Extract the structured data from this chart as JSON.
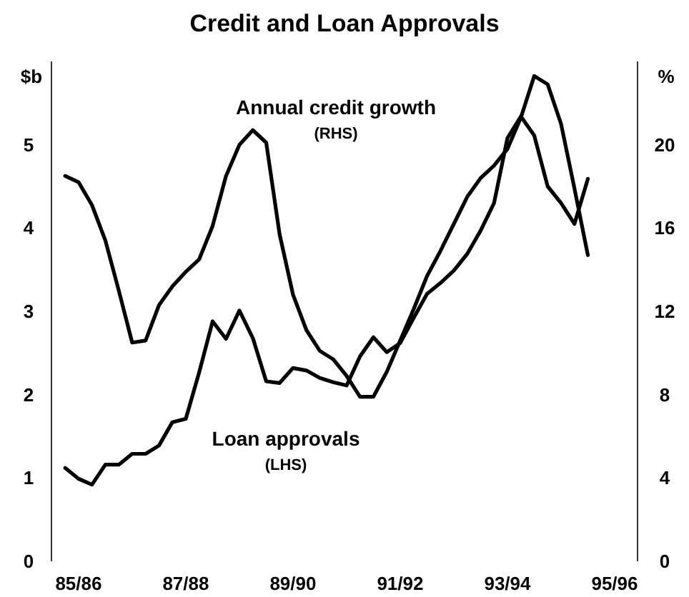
{
  "chart_data": {
    "type": "line",
    "title": "Credit and Loan Approvals",
    "ylabel": "$b",
    "y2label": "%",
    "categories": [
      null,
      "85/86",
      null,
      null,
      null,
      null,
      null,
      null,
      null,
      "87/88",
      null,
      null,
      null,
      null,
      null,
      null,
      null,
      "89/90",
      null,
      null,
      null,
      null,
      null,
      null,
      null,
      "91/92",
      null,
      null,
      null,
      null,
      null,
      null,
      null,
      "93/94",
      null,
      null,
      null,
      null,
      null,
      null,
      null,
      "95/96"
    ],
    "ylim": [
      0,
      6
    ],
    "yticks": [
      0,
      1,
      2,
      3,
      4,
      5
    ],
    "y2lim": [
      0,
      24
    ],
    "y2ticks": [
      0,
      4,
      8,
      12,
      16,
      20
    ],
    "series": [
      {
        "name": "Annual credit growth\n(RHS)",
        "color": "#000000",
        "axis": "y2",
        "values": [
          18.5,
          18.2,
          17.1,
          15.4,
          13.0,
          10.5,
          10.6,
          12.3,
          13.2,
          13.9,
          14.5,
          16.1,
          18.5,
          20.0,
          20.7,
          20.1,
          15.7,
          12.8,
          11.1,
          10.1,
          9.7,
          8.9,
          7.9,
          7.9,
          9.1,
          10.6,
          12.1,
          13.7,
          14.9,
          16.2,
          17.5,
          18.4,
          19.0,
          19.8,
          21.3,
          23.3,
          22.9,
          21.0,
          17.9,
          14.7,
          null,
          null
        ]
      },
      {
        "name": "Loan approvals\n(LHS)",
        "color": "#000000",
        "values": [
          1.12,
          0.99,
          0.92,
          1.16,
          1.16,
          1.29,
          1.29,
          1.39,
          1.67,
          1.71,
          2.27,
          2.88,
          2.67,
          3.01,
          2.68,
          2.16,
          2.14,
          2.32,
          2.29,
          2.2,
          2.15,
          2.11,
          2.46,
          2.69,
          2.51,
          2.62,
          2.92,
          3.21,
          3.34,
          3.49,
          3.69,
          3.97,
          4.3,
          5.08,
          5.34,
          5.11,
          4.5,
          4.3,
          4.05,
          4.59,
          null,
          null
        ]
      }
    ]
  }
}
